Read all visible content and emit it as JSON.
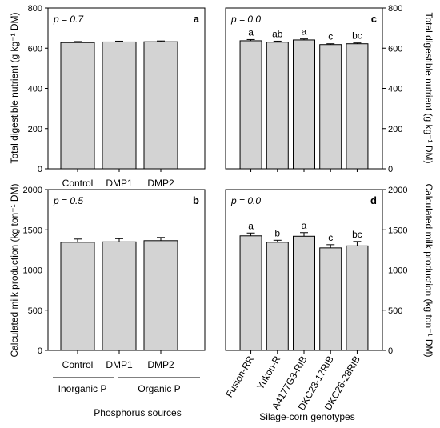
{
  "figure": {
    "left_xlabel": "Phosphorus sources",
    "right_xlabel": "Silage-corn genotypes",
    "left_groups": [
      "Inorganic P",
      "Organic P"
    ],
    "top_ylabel_left": "Total digestible nutrient (g kg⁻¹ DM)",
    "top_ylabel_right": "Total digestible nutrient (g kg⁻¹ DM)",
    "bottom_ylabel_left": "Calculated milk production (kg ton⁻¹ DM)",
    "bottom_ylabel_right": "Calculated milk production (kg ton⁻¹ DM)",
    "bar_color": "#d3d3d3"
  },
  "chart_data": [
    {
      "panel": "a",
      "type": "bar",
      "pvalue": "p = 0.7",
      "categories": [
        "Control",
        "DMP1",
        "DMP2"
      ],
      "values": [
        628,
        631,
        632
      ],
      "errors": [
        5,
        4,
        4
      ],
      "letters": [],
      "ylim": [
        0,
        800
      ],
      "yticks": [
        0,
        200,
        400,
        600,
        800
      ],
      "show_xticklabels": true,
      "ytick_side": "left"
    },
    {
      "panel": "c",
      "type": "bar",
      "pvalue": "p = 0.0",
      "categories": [
        "Fusion-RR",
        "Yukon-R",
        "A4177G3-RIB",
        "DKC23-17RIB",
        "DKC26-28RIB"
      ],
      "values": [
        637,
        630,
        641,
        618,
        622
      ],
      "errors": [
        6,
        5,
        5,
        4,
        4
      ],
      "letters": [
        "a",
        "ab",
        "a",
        "c",
        "bc"
      ],
      "ylim": [
        0,
        800
      ],
      "yticks": [
        0,
        200,
        400,
        600,
        800
      ],
      "show_xticklabels": false,
      "ytick_side": "right"
    },
    {
      "panel": "b",
      "type": "bar",
      "pvalue": "p = 0.5",
      "categories": [
        "Control",
        "DMP1",
        "DMP2"
      ],
      "values": [
        1345,
        1350,
        1365
      ],
      "errors": [
        40,
        40,
        40
      ],
      "letters": [],
      "ylim": [
        0,
        2000
      ],
      "yticks": [
        0,
        500,
        1000,
        1500,
        2000
      ],
      "show_xticklabels": true,
      "ytick_side": "left"
    },
    {
      "panel": "d",
      "type": "bar",
      "pvalue": "p = 0.0",
      "categories": [
        "Fusion-RR",
        "Yukon-R",
        "A4177G3-RIB",
        "DKC23-17RIB",
        "DKC26-28RIB"
      ],
      "values": [
        1425,
        1345,
        1420,
        1275,
        1300
      ],
      "errors": [
        35,
        25,
        45,
        40,
        55
      ],
      "letters": [
        "a",
        "b",
        "a",
        "c",
        "bc"
      ],
      "ylim": [
        0,
        2000
      ],
      "yticks": [
        0,
        500,
        1000,
        1500,
        2000
      ],
      "show_xticklabels": true,
      "ytick_side": "right"
    }
  ]
}
